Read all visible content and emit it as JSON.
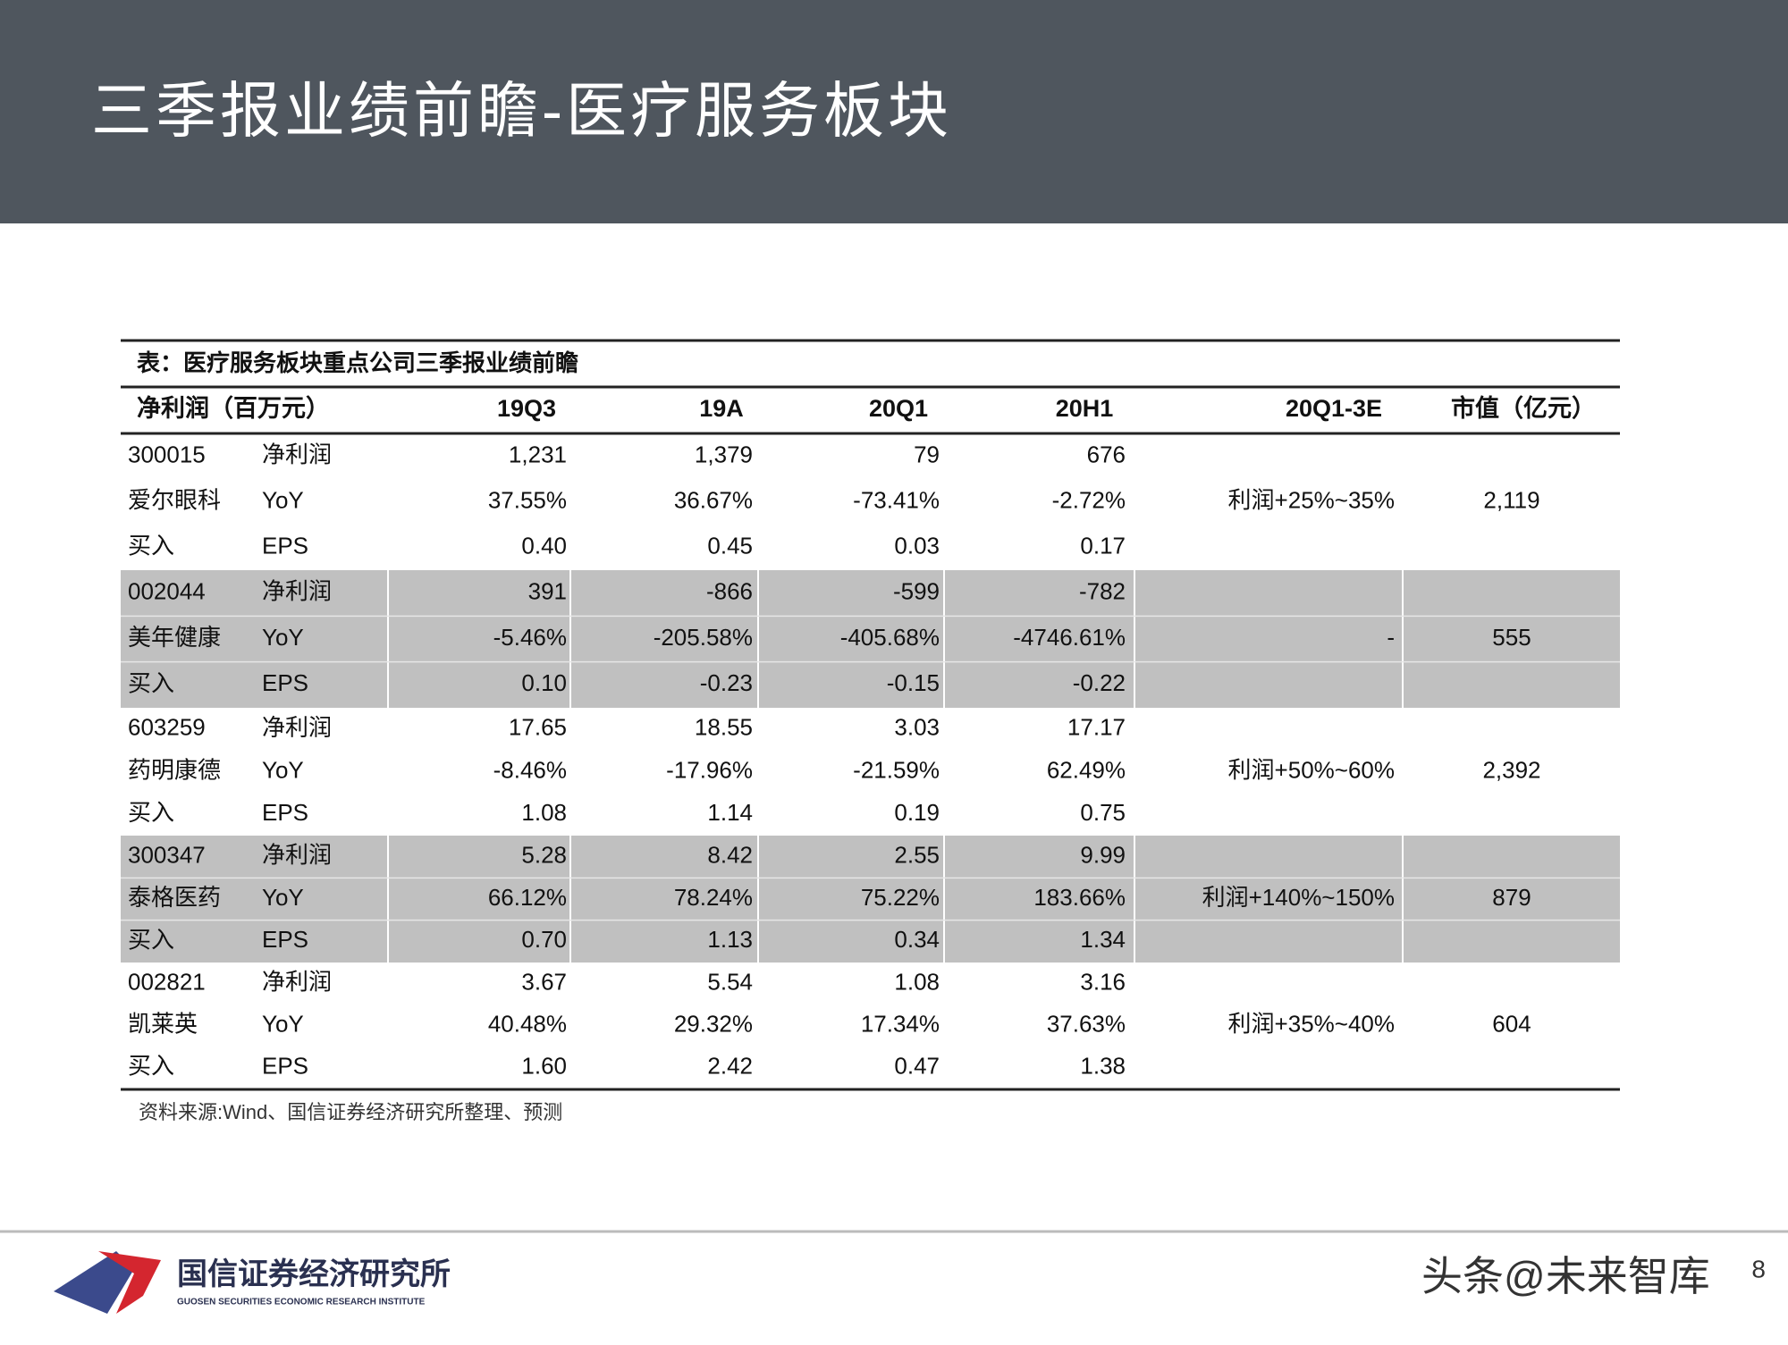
{
  "header": {
    "title": "三季报业绩前瞻-医疗服务板块"
  },
  "table": {
    "caption": "表：医疗服务板块重点公司三季报业绩前瞻",
    "columns": [
      "净利润（百万元）",
      "19Q3",
      "19A",
      "20Q1",
      "20H1",
      "20Q1-3E",
      "市值（亿元）"
    ],
    "companies": [
      {
        "code": "300015",
        "name": "爱尔眼科",
        "rating": "买入",
        "rows": [
          {
            "label": "净利润",
            "values": [
              "1,231",
              "1,379",
              "79",
              "676"
            ]
          },
          {
            "label": "YoY",
            "values": [
              "37.55%",
              "36.67%",
              "-73.41%",
              "-2.72%"
            ]
          },
          {
            "label": "EPS",
            "values": [
              "0.40",
              "0.45",
              "0.03",
              "0.17"
            ]
          }
        ],
        "forecast": "利润+25%~35%",
        "market_cap": "2,119"
      },
      {
        "code": "002044",
        "name": "美年健康",
        "rating": "买入",
        "rows": [
          {
            "label": "净利润",
            "values": [
              "391",
              "-866",
              "-599",
              "-782"
            ]
          },
          {
            "label": "YoY",
            "values": [
              "-5.46%",
              "-205.58%",
              "-405.68%",
              "-4746.61%"
            ]
          },
          {
            "label": "EPS",
            "values": [
              "0.10",
              "-0.23",
              "-0.15",
              "-0.22"
            ]
          }
        ],
        "forecast": "-",
        "market_cap": "555"
      },
      {
        "code": "603259",
        "name": "药明康德",
        "rating": "买入",
        "rows": [
          {
            "label": "净利润",
            "values": [
              "17.65",
              "18.55",
              "3.03",
              "17.17"
            ]
          },
          {
            "label": "YoY",
            "values": [
              "-8.46%",
              "-17.96%",
              "-21.59%",
              "62.49%"
            ]
          },
          {
            "label": "EPS",
            "values": [
              "1.08",
              "1.14",
              "0.19",
              "0.75"
            ]
          }
        ],
        "forecast": "利润+50%~60%",
        "market_cap": "2,392"
      },
      {
        "code": "300347",
        "name": "泰格医药",
        "rating": "买入",
        "rows": [
          {
            "label": "净利润",
            "values": [
              "5.28",
              "8.42",
              "2.55",
              "9.99"
            ]
          },
          {
            "label": "YoY",
            "values": [
              "66.12%",
              "78.24%",
              "75.22%",
              "183.66%"
            ]
          },
          {
            "label": "EPS",
            "values": [
              "0.70",
              "1.13",
              "0.34",
              "1.34"
            ]
          }
        ],
        "forecast": "利润+140%~150%",
        "market_cap": "879"
      },
      {
        "code": "002821",
        "name": "凯莱英",
        "rating": "买入",
        "rows": [
          {
            "label": "净利润",
            "values": [
              "3.67",
              "5.54",
              "1.08",
              "3.16"
            ]
          },
          {
            "label": "YoY",
            "values": [
              "40.48%",
              "29.32%",
              "17.34%",
              "37.63%"
            ]
          },
          {
            "label": "EPS",
            "values": [
              "1.60",
              "2.42",
              "0.47",
              "1.38"
            ]
          }
        ],
        "forecast": "利润+35%~40%",
        "market_cap": "604"
      }
    ],
    "source": "资料来源:Wind、国信证券经济研究所整理、预测"
  },
  "footer": {
    "logo_cn": "国信证券经济研究所",
    "logo_en": "GUOSEN SECURITIES ECONOMIC RESEARCH INSTITUTE",
    "watermark": "头条@未来智库",
    "page": "8"
  }
}
